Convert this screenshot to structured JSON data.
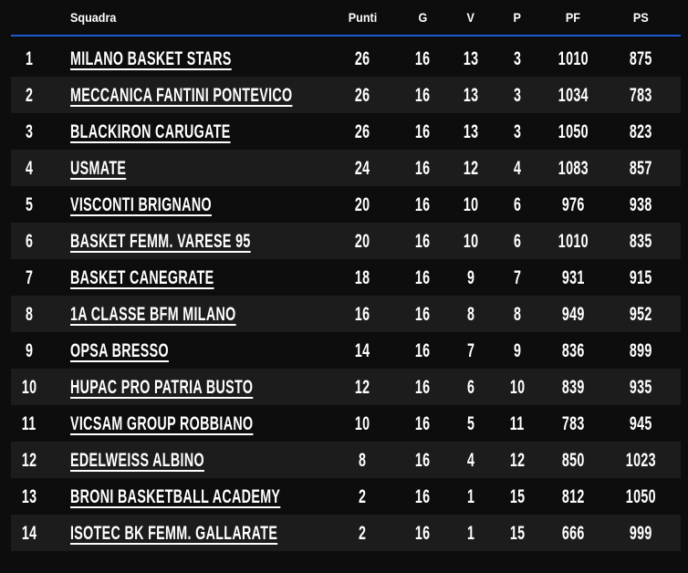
{
  "colors": {
    "background": "#0d0d0d",
    "row_stripe": "#1c1c1c",
    "accent_line": "#1d59d2",
    "text": "#ffffff"
  },
  "table": {
    "headers": {
      "squadra": "Squadra",
      "punti": "Punti",
      "g": "G",
      "v": "V",
      "p": "P",
      "pf": "PF",
      "ps": "PS"
    },
    "rows": [
      {
        "rank": "1",
        "team": "MILANO BASKET STARS",
        "punti": "26",
        "g": "16",
        "v": "13",
        "p": "3",
        "pf": "1010",
        "ps": "875"
      },
      {
        "rank": "2",
        "team": "MECCANICA FANTINI PONTEVICO",
        "punti": "26",
        "g": "16",
        "v": "13",
        "p": "3",
        "pf": "1034",
        "ps": "783"
      },
      {
        "rank": "3",
        "team": "BLACKIRON CARUGATE",
        "punti": "26",
        "g": "16",
        "v": "13",
        "p": "3",
        "pf": "1050",
        "ps": "823"
      },
      {
        "rank": "4",
        "team": "USMATE",
        "punti": "24",
        "g": "16",
        "v": "12",
        "p": "4",
        "pf": "1083",
        "ps": "857"
      },
      {
        "rank": "5",
        "team": "VISCONTI BRIGNANO",
        "punti": "20",
        "g": "16",
        "v": "10",
        "p": "6",
        "pf": "976",
        "ps": "938"
      },
      {
        "rank": "6",
        "team": "BASKET FEMM. VARESE 95",
        "punti": "20",
        "g": "16",
        "v": "10",
        "p": "6",
        "pf": "1010",
        "ps": "835"
      },
      {
        "rank": "7",
        "team": "BASKET CANEGRATE",
        "punti": "18",
        "g": "16",
        "v": "9",
        "p": "7",
        "pf": "931",
        "ps": "915"
      },
      {
        "rank": "8",
        "team": "1A CLASSE BFM MILANO",
        "punti": "16",
        "g": "16",
        "v": "8",
        "p": "8",
        "pf": "949",
        "ps": "952"
      },
      {
        "rank": "9",
        "team": "OPSA BRESSO",
        "punti": "14",
        "g": "16",
        "v": "7",
        "p": "9",
        "pf": "836",
        "ps": "899"
      },
      {
        "rank": "10",
        "team": "HUPAC PRO PATRIA BUSTO",
        "punti": "12",
        "g": "16",
        "v": "6",
        "p": "10",
        "pf": "839",
        "ps": "935"
      },
      {
        "rank": "11",
        "team": "VICSAM GROUP ROBBIANO",
        "punti": "10",
        "g": "16",
        "v": "5",
        "p": "11",
        "pf": "783",
        "ps": "945"
      },
      {
        "rank": "12",
        "team": "EDELWEISS ALBINO",
        "punti": "8",
        "g": "16",
        "v": "4",
        "p": "12",
        "pf": "850",
        "ps": "1023"
      },
      {
        "rank": "13",
        "team": "BRONI BASKETBALL ACADEMY",
        "punti": "2",
        "g": "16",
        "v": "1",
        "p": "15",
        "pf": "812",
        "ps": "1050"
      },
      {
        "rank": "14",
        "team": "ISOTEC BK FEMM. GALLARATE",
        "punti": "2",
        "g": "16",
        "v": "1",
        "p": "15",
        "pf": "666",
        "ps": "999"
      }
    ]
  }
}
